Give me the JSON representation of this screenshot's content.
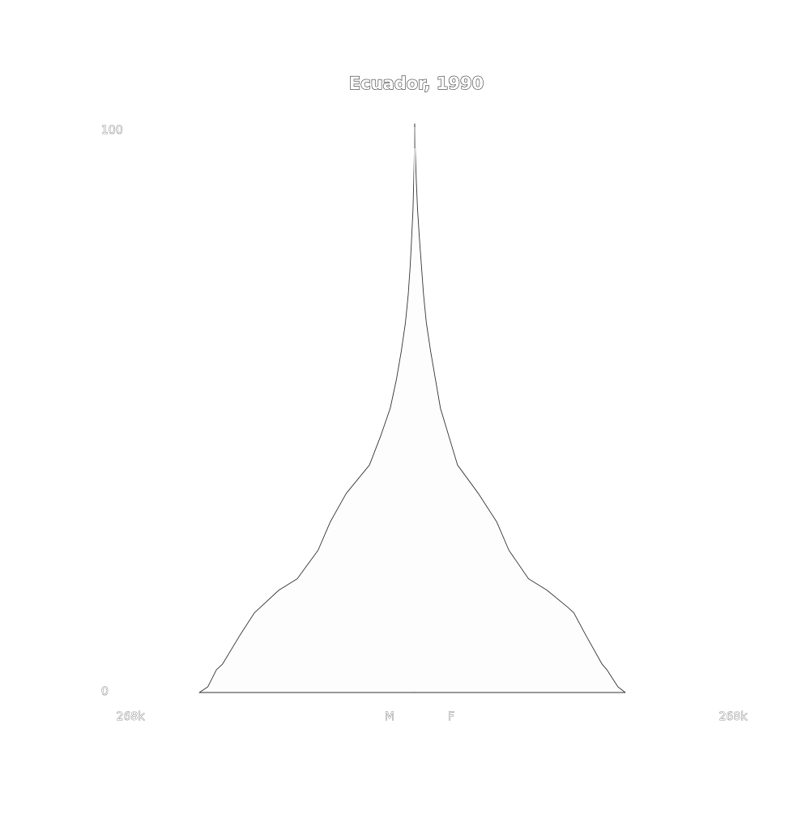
{
  "chart_data": {
    "type": "area",
    "title": "Ecuador, 1990",
    "y_axis": {
      "min_label": "0",
      "max_label": "100",
      "ylim": [
        0,
        100
      ]
    },
    "x_axis": {
      "left_label": "268k",
      "right_label": "268k",
      "male_label": "M",
      "female_label": "F",
      "xlim": [
        -268000,
        268000
      ]
    },
    "series": [
      {
        "name": "M",
        "ages": [
          0,
          1,
          4,
          5,
          10,
          14,
          15,
          18,
          20,
          25,
          30,
          35,
          40,
          45,
          50,
          55,
          60,
          65,
          70,
          75,
          80,
          85,
          90,
          95,
          98,
          100
        ],
        "values": [
          176000,
          169000,
          162000,
          157000,
          143000,
          131000,
          126000,
          111000,
          96000,
          79000,
          69000,
          56000,
          37000,
          28000,
          20000,
          15000,
          11000,
          7600,
          5300,
          3700,
          2500,
          1400,
          800,
          300,
          100,
          20
        ]
      },
      {
        "name": "F",
        "ages": [
          0,
          1,
          4,
          5,
          10,
          14,
          15,
          18,
          20,
          25,
          30,
          35,
          40,
          45,
          50,
          55,
          60,
          65,
          70,
          75,
          80,
          85,
          90,
          95,
          98,
          100
        ],
        "values": [
          172000,
          166000,
          157000,
          153000,
          140000,
          130000,
          125000,
          108000,
          93000,
          77000,
          67000,
          52000,
          35000,
          28000,
          21000,
          17000,
          13000,
          9500,
          7200,
          5500,
          3800,
          2300,
          1300,
          500,
          200,
          20
        ]
      }
    ],
    "colors": {
      "fill": "#fdfdfd",
      "outline": "#333333"
    }
  }
}
